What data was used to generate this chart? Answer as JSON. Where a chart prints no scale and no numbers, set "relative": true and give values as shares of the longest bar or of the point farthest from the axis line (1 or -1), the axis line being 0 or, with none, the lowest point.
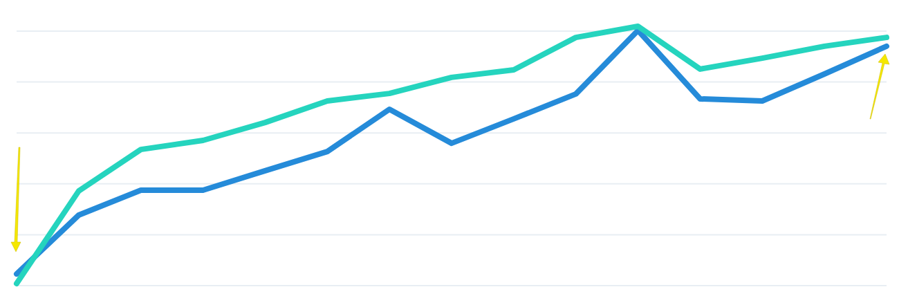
{
  "chart_data": {
    "type": "line",
    "relative": true,
    "grid": "y",
    "marker": "none",
    "line_style": "solid",
    "categories": [
      null,
      null,
      null,
      null,
      null,
      null,
      null,
      null,
      null,
      null,
      null,
      null,
      null,
      null,
      null
    ],
    "series": [
      {
        "color": "#258bd9",
        "values": [
          0.045,
          0.272,
          0.368,
          0.368,
          0.443,
          0.517,
          0.68,
          0.549,
          0.643,
          0.739,
          0.984,
          0.72,
          0.712,
          0.816,
          0.923
        ]
      },
      {
        "color": "#25d4be",
        "values": [
          0.008,
          0.365,
          0.525,
          0.56,
          0.629,
          0.712,
          0.741,
          0.803,
          0.832,
          0.957,
          1,
          0.835,
          0.877,
          0.923,
          0.957
        ]
      }
    ]
  }
}
